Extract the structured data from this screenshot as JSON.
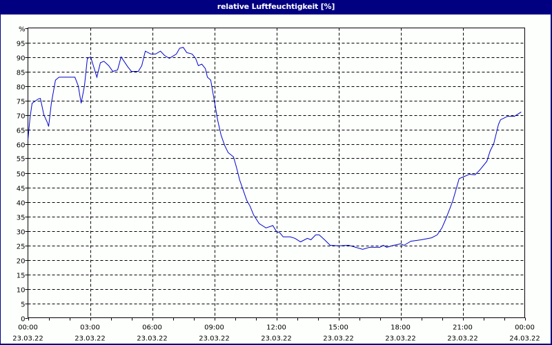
{
  "window": {
    "title": "relative Luftfeuchtigkeit [%]",
    "colors": {
      "titlebar": "#000080",
      "title_text": "#ffffff",
      "background": "#fcfffc",
      "series_line": "#0000cc",
      "grid": "#000000"
    }
  },
  "chart_data": {
    "type": "line",
    "title": "relative Luftfeuchtigkeit [%]",
    "xlabel": "",
    "ylabel": "%",
    "ylim": [
      0,
      100
    ],
    "xlim_hours": [
      0,
      24
    ],
    "grid": true,
    "grid_style": "dashed",
    "legend": null,
    "y_ticks": [
      "0",
      "5",
      "10",
      "15",
      "20",
      "25",
      "30",
      "35",
      "40",
      "45",
      "50",
      "55",
      "60",
      "65",
      "70",
      "75",
      "80",
      "85",
      "90",
      "95",
      "%"
    ],
    "x_ticks": [
      {
        "time": "00:00",
        "date": "23.03.22"
      },
      {
        "time": "03:00",
        "date": "23.03.22"
      },
      {
        "time": "06:00",
        "date": "23.03.22"
      },
      {
        "time": "09:00",
        "date": "23.03.22"
      },
      {
        "time": "12:00",
        "date": "23.03.22"
      },
      {
        "time": "15:00",
        "date": "23.03.22"
      },
      {
        "time": "18:00",
        "date": "23.03.22"
      },
      {
        "time": "21:00",
        "date": "23.03.22"
      },
      {
        "time": "00:00",
        "date": "24.03.22"
      }
    ],
    "series": [
      {
        "name": "relative Luftfeuchtigkeit",
        "x_hours": [
          0.0,
          0.1,
          0.2,
          0.4,
          0.5,
          0.6,
          0.77,
          0.93,
          1.0,
          1.13,
          1.33,
          1.5,
          2.27,
          2.43,
          2.57,
          2.73,
          2.87,
          3.03,
          3.33,
          3.5,
          3.67,
          3.9,
          4.1,
          4.33,
          4.5,
          4.83,
          5.0,
          5.33,
          5.5,
          5.67,
          5.93,
          6.17,
          6.4,
          6.6,
          6.83,
          7.17,
          7.33,
          7.5,
          7.67,
          7.93,
          8.1,
          8.23,
          8.4,
          8.57,
          8.67,
          8.83,
          9.0,
          9.17,
          9.33,
          9.5,
          9.67,
          9.93,
          10.07,
          10.23,
          10.4,
          10.57,
          10.73,
          10.9,
          11.17,
          11.5,
          11.83,
          12.0,
          12.17,
          12.33,
          12.67,
          12.9,
          13.17,
          13.5,
          13.67,
          13.9,
          14.07,
          14.33,
          14.6,
          15.0,
          15.5,
          15.83,
          16.17,
          16.5,
          17.0,
          17.17,
          17.33,
          17.67,
          18.0,
          18.17,
          18.5,
          19.0,
          19.5,
          19.77,
          20.0,
          20.17,
          20.4,
          20.53,
          20.67,
          20.83,
          21.1,
          21.33,
          21.6,
          21.83,
          22.17,
          22.33,
          22.5,
          22.73,
          22.83,
          23.17,
          23.5,
          23.83
        ],
        "values": [
          61.5,
          69,
          74,
          75,
          75.5,
          75.7,
          70,
          67.5,
          66,
          74,
          82,
          83,
          83,
          80,
          74,
          80,
          89.5,
          90,
          83,
          88,
          88.5,
          87,
          85,
          85.5,
          90,
          86.5,
          85,
          85,
          87,
          92,
          91,
          91,
          92,
          90.5,
          89.5,
          91,
          93,
          93.3,
          91.5,
          91,
          89.5,
          87,
          87.5,
          86,
          83,
          82,
          75,
          68,
          63,
          59.5,
          57,
          55.5,
          52,
          47.5,
          44,
          40.5,
          38.5,
          35.5,
          32.5,
          31,
          31.8,
          29.8,
          29.3,
          27.9,
          27.9,
          27.4,
          26.2,
          27.4,
          26.9,
          28.6,
          28.6,
          26.9,
          25,
          24.8,
          25,
          24.3,
          23.6,
          24.3,
          24.3,
          25,
          24.3,
          25,
          25.5,
          25,
          26.4,
          26.9,
          27.6,
          28.6,
          31,
          33.8,
          38,
          40.5,
          44,
          48,
          48.8,
          49.5,
          49.3,
          51,
          54,
          57.6,
          60,
          66.7,
          68.3,
          69.5,
          69.5,
          71
        ]
      }
    ]
  }
}
